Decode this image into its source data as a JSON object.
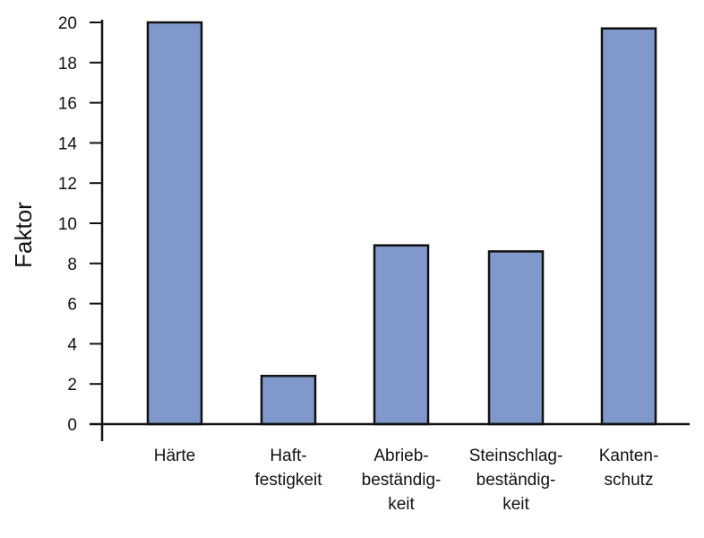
{
  "chart_data": {
    "type": "bar",
    "categories": [
      [
        "Härte"
      ],
      [
        "Haft-",
        "festigkeit"
      ],
      [
        "Abrieb-",
        "beständig-",
        "keit"
      ],
      [
        "Steinschlag-",
        "beständig-",
        "keit"
      ],
      [
        "Kanten-",
        "schutz"
      ]
    ],
    "values": [
      20,
      2.4,
      8.9,
      8.6,
      19.7
    ],
    "ylabel": "Faktor",
    "ylim": [
      0,
      20
    ],
    "yticks": [
      0,
      2,
      4,
      6,
      8,
      10,
      12,
      14,
      16,
      18,
      20
    ],
    "grid": false,
    "bar_color": "#8098cb",
    "bar_edge_color": "#111111"
  }
}
